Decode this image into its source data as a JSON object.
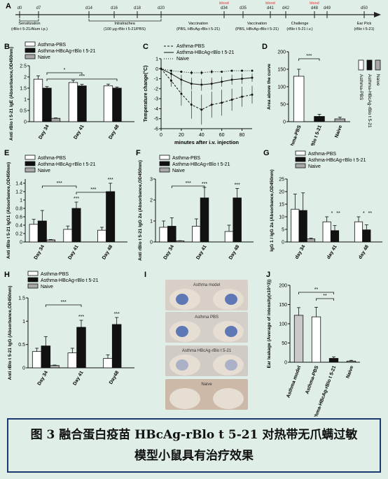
{
  "timeline": {
    "panel_label": "A",
    "days": [
      {
        "label": "d0",
        "blood": false
      },
      {
        "label": "d7",
        "blood": false
      },
      {
        "label": "d14",
        "blood": false
      },
      {
        "label": "d16",
        "blood": false
      },
      {
        "label": "d18",
        "blood": false
      },
      {
        "label": "d20",
        "blood": false
      },
      {
        "label": "d34",
        "blood": true
      },
      {
        "label": "d35",
        "blood": false
      },
      {
        "label": "d41",
        "blood": true
      },
      {
        "label": "d42",
        "blood": false
      },
      {
        "label": "d48",
        "blood": true
      },
      {
        "label": "d49",
        "blood": false
      },
      {
        "label": "d50",
        "blood": false
      }
    ],
    "blood_label": "blood",
    "phases": [
      {
        "title": "Sensitization",
        "detail": "(rBlo t 5-21/Alum i.p.)"
      },
      {
        "title": "Intratrachea",
        "detail": "(100 μg rBlo t 5-21/PBS)"
      },
      {
        "title": "Vaccination",
        "detail": "(PBS, HBcAg-rBlo t 5-21)"
      },
      {
        "title": "Vaccination",
        "detail": "(PBS, HBcAg-rBlo t 5-21)"
      },
      {
        "title": "Challenge",
        "detail": "(rBlo t 5-21 i.v.)"
      },
      {
        "title": "Ear Pick",
        "detail": "(rBlo t 5-21)"
      }
    ]
  },
  "colors": {
    "asthma_pbs": "#ffffff",
    "hbcag": "#111111",
    "naive": "#a8a8a8",
    "blood": "#e53030",
    "caption_border": "#1c3a72",
    "background": "#dfeee6"
  },
  "caption": {
    "line1": "图 3  融合蛋白疫苗 HBcAg-rBlo t 5-21 对热带无爪螨过敏",
    "line2": "模型小鼠具有治疗效果"
  },
  "image_panel": {
    "label": "I",
    "rows": [
      "Asthma model",
      "Asthma PBS",
      "Asthma HBcAg-rBlo t 5-21",
      "Naive"
    ]
  },
  "chart_data": [
    {
      "id": "B",
      "type": "bar",
      "label": "B",
      "categories": [
        "Day 34",
        "Day 41",
        "Day 48"
      ],
      "series": [
        {
          "name": "Asthma-PBS",
          "values": [
            1.9,
            1.75,
            1.6
          ],
          "errors": [
            0.15,
            0.1,
            0.08
          ],
          "fill": "#ffffff"
        },
        {
          "name": "Asthma-HBcAg-rBlo t 5-21",
          "values": [
            1.5,
            1.6,
            1.5
          ],
          "errors": [
            0.07,
            0.07,
            0.05
          ],
          "fill": "#111111"
        },
        {
          "name": "Naive",
          "values": [
            0.15,
            0,
            0
          ],
          "errors": [
            0.02,
            0,
            0
          ],
          "fill": "#a8a8a8"
        }
      ],
      "ylabel": "Anti rBlo t 5-21 IgE (Absorbance,OD450nm)",
      "ylim": [
        0,
        2.5
      ],
      "yticks": [
        0,
        0.5,
        1.0,
        1.5,
        2.0,
        2.5
      ],
      "annotations": [
        {
          "text": "*",
          "from": 0,
          "to": 1
        },
        {
          "text": "***",
          "from": 0,
          "to": 2
        }
      ],
      "legend": "top"
    },
    {
      "id": "C",
      "type": "line",
      "label": "C",
      "x": [
        0,
        10,
        20,
        30,
        40,
        50,
        60,
        70,
        80,
        90
      ],
      "series": [
        {
          "name": "Asthma-PBS",
          "values": [
            0,
            -1.2,
            -2.5,
            -3.6,
            -4.1,
            -3.6,
            -3.4,
            -3.1,
            -2.8,
            -2.6
          ],
          "errors": [
            0,
            0.6,
            1.2,
            1.4,
            1.5,
            1.3,
            1.3,
            1.1,
            1.0,
            0.9
          ]
        },
        {
          "name": "Asthma-HBcAg-rBlo t 5-21",
          "values": [
            0,
            -0.5,
            -1.1,
            -1.5,
            -1.6,
            -1.5,
            -1.3,
            -1.1,
            -1.0,
            -0.9
          ],
          "errors": [
            0,
            0.3,
            0.5,
            0.6,
            0.6,
            0.6,
            0.5,
            0.5,
            0.5,
            0.4
          ]
        },
        {
          "name": "Naive",
          "values": [
            0,
            -0.2,
            -0.3,
            -0.4,
            -0.4,
            -0.3,
            -0.3,
            -0.2,
            -0.2,
            -0.2
          ],
          "errors": [
            0,
            0.1,
            0.1,
            0.2,
            0.2,
            0.2,
            0.1,
            0.1,
            0.1,
            0.1
          ]
        }
      ],
      "xlabel": "minutes after i.v. injection",
      "ylabel": "Temperature change(°C)",
      "xlim": [
        0,
        90
      ],
      "xticks": [
        0,
        20,
        40,
        60,
        80
      ],
      "ylim": [
        -6,
        1
      ],
      "yticks": [
        1,
        0,
        -1,
        -2,
        -3,
        -4,
        -5,
        -6
      ],
      "legend": "top"
    },
    {
      "id": "D",
      "type": "bar",
      "label": "D",
      "categories": [
        "Asthma-PBS",
        "Asthma-HBcAg-rBlo t 5-21",
        "Naive"
      ],
      "values": [
        130,
        15,
        8
      ],
      "errors": [
        20,
        6,
        5
      ],
      "fills": [
        "#ffffff",
        "#111111",
        "#a8a8a8"
      ],
      "ylabel": "Area above the curve",
      "ylim": [
        0,
        200
      ],
      "yticks": [
        0,
        50,
        100,
        150,
        200
      ],
      "annotations": [
        {
          "text": "***",
          "from": 0,
          "to": 1
        }
      ],
      "legend": "right"
    },
    {
      "id": "E",
      "type": "bar",
      "label": "E",
      "categories": [
        "Day 34",
        "Day 41",
        "Day 48"
      ],
      "series": [
        {
          "name": "Asthma-PBS",
          "values": [
            0.42,
            0.3,
            0.28
          ],
          "errors": [
            0.12,
            0.08,
            0.07
          ],
          "fill": "#ffffff"
        },
        {
          "name": "Asthma-HBcAg-rBlo t 5-21",
          "values": [
            0.5,
            0.8,
            1.2
          ],
          "errors": [
            0.25,
            0.15,
            0.2
          ],
          "fill": "#111111"
        },
        {
          "name": "Naive",
          "values": [
            0.05,
            0,
            0
          ],
          "errors": [
            0.01,
            0,
            0
          ],
          "fill": "#a8a8a8"
        }
      ],
      "ylabel": "Anti rBlo t 5-21 IgG1 (Absorbance,OD450nm)",
      "ylim": [
        0,
        1.5
      ],
      "yticks": [
        0,
        0.2,
        0.4,
        0.6,
        0.8,
        1.0,
        1.2,
        1.4
      ],
      "annotations": [
        {
          "text": "***",
          "from": 0,
          "to": 1
        },
        {
          "text": "***",
          "from": 1,
          "to": 2
        },
        {
          "text": "***",
          "group": 1
        },
        {
          "text": "***",
          "group": 2
        }
      ],
      "legend": "top"
    },
    {
      "id": "F",
      "type": "bar",
      "label": "F",
      "categories": [
        "Day 34",
        "Day 41",
        "Day 48"
      ],
      "series": [
        {
          "name": "Asthma-PBS",
          "values": [
            0.7,
            0.75,
            0.5
          ],
          "errors": [
            0.3,
            0.35,
            0.3
          ],
          "fill": "#ffffff"
        },
        {
          "name": "Asthma-HBcAg-rBlo t 5-21",
          "values": [
            0.75,
            2.1,
            2.1
          ],
          "errors": [
            0.4,
            0.5,
            0.45
          ],
          "fill": "#111111"
        },
        {
          "name": "Naive",
          "values": [
            0.05,
            0,
            0
          ],
          "errors": [
            0.01,
            0,
            0
          ],
          "fill": "#a8a8a8"
        }
      ],
      "ylabel": "Anti rBlo t 5-21 IgG 2a (Absorbance,OD450nm)",
      "ylim": [
        0,
        3
      ],
      "yticks": [
        0,
        1,
        2,
        3
      ],
      "annotations": [
        {
          "text": "***",
          "from": 0,
          "to": 1
        },
        {
          "text": "***",
          "group": 1
        },
        {
          "text": "***",
          "group": 2
        }
      ],
      "legend": "top"
    },
    {
      "id": "G",
      "type": "bar",
      "label": "G",
      "categories": [
        "day 34",
        "day 41",
        "day 48"
      ],
      "series": [
        {
          "name": "Asthma-PBS",
          "values": [
            13,
            8,
            8
          ],
          "errors": [
            6,
            2,
            2
          ],
          "fill": "#ffffff"
        },
        {
          "name": "Asthma-HBcAg-rBlo t 5-21",
          "values": [
            12.5,
            4.5,
            4.8
          ],
          "errors": [
            7,
            2,
            2
          ],
          "fill": "#111111"
        },
        {
          "name": "Naive",
          "values": [
            1.2,
            0,
            0
          ],
          "errors": [
            0.3,
            0,
            0
          ],
          "fill": "#a8a8a8"
        }
      ],
      "ylabel": "IgG 1 / IgG 2a (Absorbance,OD450nm)",
      "ylim": [
        0,
        25
      ],
      "yticks": [
        0,
        5,
        10,
        15,
        20,
        25
      ],
      "annotations": [
        {
          "text": "*",
          "group": 1
        },
        {
          "text": "**",
          "group": 1
        },
        {
          "text": "*",
          "group": 2
        },
        {
          "text": "**",
          "group": 2
        }
      ],
      "legend": "top"
    },
    {
      "id": "H",
      "type": "bar",
      "label": "H",
      "categories": [
        "Day 34",
        "Day 41",
        "Day48"
      ],
      "series": [
        {
          "name": "Asthma-PBS",
          "values": [
            0.35,
            0.32,
            0.2
          ],
          "errors": [
            0.07,
            0.1,
            0.08
          ],
          "fill": "#ffffff"
        },
        {
          "name": "Asthma-HBcAg-rBlo t 5-21",
          "values": [
            0.47,
            0.87,
            0.93
          ],
          "errors": [
            0.2,
            0.15,
            0.15
          ],
          "fill": "#111111"
        },
        {
          "name": "Naive",
          "values": [
            0.05,
            0,
            0
          ],
          "errors": [
            0.01,
            0,
            0
          ],
          "fill": "#a8a8a8"
        }
      ],
      "ylabel": "Anti rBlo t 5-21 IgG (Absorbance,OD450nm)",
      "ylim": [
        0,
        1.5
      ],
      "yticks": [
        0,
        0.5,
        1.0,
        1.5
      ],
      "annotations": [
        {
          "text": "***",
          "from": 0,
          "to": 1
        },
        {
          "text": "***",
          "group": 1
        },
        {
          "text": "***",
          "group": 2
        }
      ],
      "legend": "top"
    },
    {
      "id": "J",
      "type": "bar",
      "label": "J",
      "categories": [
        "Asthma model",
        "Asthma-PBS",
        "Asthma-HBcAg-rBlo t 5-21",
        "Naive"
      ],
      "values": [
        122,
        118,
        10,
        3
      ],
      "errors": [
        20,
        25,
        4,
        2
      ],
      "fills": [
        "#c8c8c8",
        "#ffffff",
        "#111111",
        "#a8a8a8"
      ],
      "ylabel": "Ear leakage (Average of intensity(x10^3))",
      "ylim": [
        0,
        200
      ],
      "yticks": [
        0,
        50,
        100,
        150,
        200
      ],
      "annotations": [
        {
          "text": "**",
          "from": 0,
          "to": 2
        },
        {
          "text": "**",
          "from": 1,
          "to": 2
        }
      ]
    }
  ]
}
